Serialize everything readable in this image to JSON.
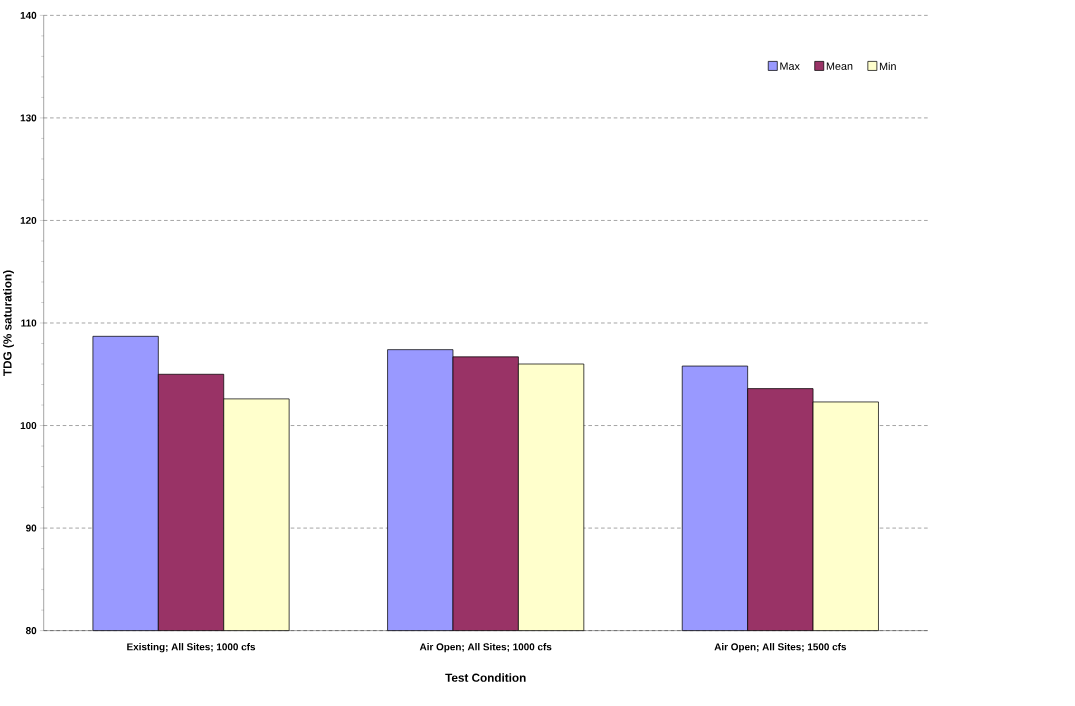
{
  "chart_data": {
    "type": "bar",
    "xlabel": "Test Condition",
    "ylabel": "TDG (% saturation)",
    "categories": [
      "Existing; All Sites; 1000 cfs",
      "Air Open; All Sites; 1000 cfs",
      "Air Open; All Sites; 1500 cfs"
    ],
    "series": [
      {
        "name": "Max",
        "color": "#9999ff",
        "values": [
          108.7,
          107.4,
          105.8
        ]
      },
      {
        "name": "Mean",
        "color": "#993366",
        "values": [
          105.0,
          106.7,
          103.6
        ]
      },
      {
        "name": "Min",
        "color": "#ffffcc",
        "values": [
          102.6,
          106.0,
          102.3
        ]
      }
    ],
    "ylim": [
      80,
      140
    ],
    "yticks": [
      80,
      90,
      100,
      110,
      120,
      130,
      140
    ],
    "grid": "y",
    "legend": "top right"
  }
}
